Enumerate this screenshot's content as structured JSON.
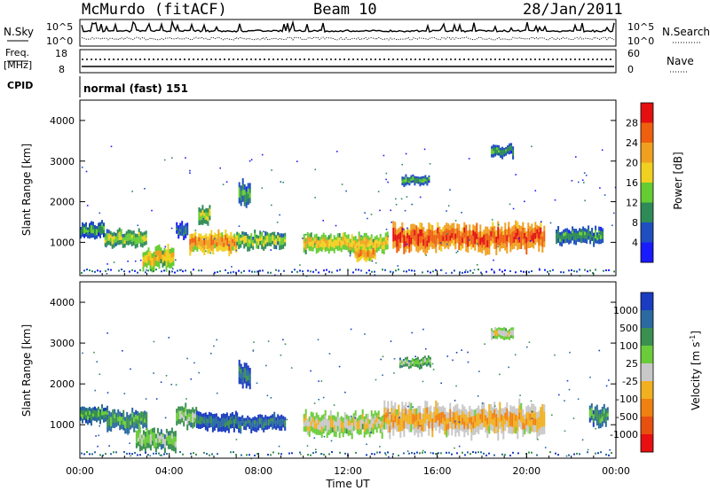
{
  "header": {
    "station": "McMurdo (fitACF)",
    "beam": "Beam 10",
    "date": "28/Jan/2011"
  },
  "summary_panels": {
    "nsky_label": "N.Sky",
    "nsky_ticks": [
      "10^5",
      "10^0"
    ],
    "nsearch_label": "N.Search",
    "nsearch_ticks": [
      "10^5",
      "10^0"
    ],
    "freq_label_1": "Freq.",
    "freq_label_2": "[MHz]",
    "freq_ticks": [
      "18",
      "8"
    ],
    "nave_label": "Nave",
    "nave_ticks": [
      "60",
      "0"
    ],
    "cpid_label": "CPID",
    "cpid_value": "normal (fast) 151"
  },
  "chart_data": [
    {
      "type": "heatmap",
      "name": "power",
      "ylabel": "Slant Range [km]",
      "ylim": [
        180,
        4500
      ],
      "yticks": [
        "1000",
        "2000",
        "3000",
        "4000"
      ],
      "colorbar_label": "Power [dB]",
      "colorbar_ticks": [
        "4",
        "8",
        "12",
        "16",
        "20",
        "24",
        "28"
      ],
      "colorbar_colors": [
        "#1a1aff",
        "#1f4fbf",
        "#2e8b57",
        "#66cc33",
        "#f0d020",
        "#f0a020",
        "#ee6010",
        "#e41010"
      ],
      "echo_regions": [
        {
          "t": [
            0.0,
            1.1
          ],
          "r": [
            1100,
            1500
          ],
          "level": 3
        },
        {
          "t": [
            1.1,
            3.0
          ],
          "r": [
            900,
            1300
          ],
          "level": 4
        },
        {
          "t": [
            2.8,
            4.2
          ],
          "r": [
            350,
            900
          ],
          "level": 5
        },
        {
          "t": [
            4.3,
            4.8
          ],
          "r": [
            1100,
            1500
          ],
          "level": 2
        },
        {
          "t": [
            4.9,
            7.0
          ],
          "r": [
            750,
            1250
          ],
          "level": 6
        },
        {
          "t": [
            5.3,
            5.8
          ],
          "r": [
            1450,
            1900
          ],
          "level": 4
        },
        {
          "t": [
            7.0,
            9.2
          ],
          "r": [
            850,
            1250
          ],
          "level": 4
        },
        {
          "t": [
            7.1,
            7.6
          ],
          "r": [
            1900,
            2500
          ],
          "level": 3
        },
        {
          "t": [
            10.0,
            13.8
          ],
          "r": [
            750,
            1200
          ],
          "level": 5
        },
        {
          "t": [
            12.3,
            13.2
          ],
          "r": [
            550,
            900
          ],
          "level": 6
        },
        {
          "t": [
            14.0,
            20.8
          ],
          "r": [
            800,
            1450
          ],
          "level": 7
        },
        {
          "t": [
            14.4,
            15.6
          ],
          "r": [
            2400,
            2650
          ],
          "level": 3
        },
        {
          "t": [
            18.4,
            19.4
          ],
          "r": [
            3100,
            3400
          ],
          "level": 3
        },
        {
          "t": [
            21.3,
            23.4
          ],
          "r": [
            950,
            1350
          ],
          "level": 3
        }
      ]
    },
    {
      "type": "heatmap",
      "name": "velocity",
      "xlabel": "Time UT",
      "xticks": [
        "00:00",
        "04:00",
        "08:00",
        "12:00",
        "16:00",
        "20:00",
        "00:00"
      ],
      "xlim": [
        0,
        24
      ],
      "ylabel": "Slant Range [km]",
      "ylim": [
        180,
        4500
      ],
      "yticks": [
        "1000",
        "2000",
        "3000",
        "4000"
      ],
      "colorbar_label": "Velocity [m s",
      "colorbar_sup": "-1",
      "colorbar_ticks": [
        "1000",
        "500",
        "100",
        "25",
        "-25",
        "-100",
        "-500",
        "-1000"
      ],
      "colorbar_colors": [
        "#1a3cc0",
        "#2a6aa0",
        "#3a9050",
        "#6acc3a",
        "#c8c8c8",
        "#f0b020",
        "#f08010",
        "#e85010",
        "#e81010"
      ],
      "echo_regions": [
        {
          "t": [
            0.0,
            1.2
          ],
          "r": [
            1050,
            1450
          ],
          "level": 3
        },
        {
          "t": [
            1.2,
            3.0
          ],
          "r": [
            850,
            1350
          ],
          "level": 3
        },
        {
          "t": [
            2.5,
            4.3
          ],
          "r": [
            350,
            900
          ],
          "level": 4
        },
        {
          "t": [
            4.3,
            5.2
          ],
          "r": [
            950,
            1450
          ],
          "level": 4
        },
        {
          "t": [
            5.2,
            7.0
          ],
          "r": [
            850,
            1300
          ],
          "level": 2
        },
        {
          "t": [
            7.0,
            9.2
          ],
          "r": [
            850,
            1250
          ],
          "level": 2
        },
        {
          "t": [
            7.1,
            7.6
          ],
          "r": [
            1900,
            2500
          ],
          "level": 2
        },
        {
          "t": [
            10.0,
            13.6
          ],
          "r": [
            750,
            1300
          ],
          "level": 5
        },
        {
          "t": [
            13.6,
            20.8
          ],
          "r": [
            750,
            1500
          ],
          "level": 6
        },
        {
          "t": [
            14.3,
            15.7
          ],
          "r": [
            2400,
            2650
          ],
          "level": 4
        },
        {
          "t": [
            18.4,
            19.4
          ],
          "r": [
            3100,
            3400
          ],
          "level": 5
        },
        {
          "t": [
            22.8,
            23.6
          ],
          "r": [
            1000,
            1500
          ],
          "level": 3
        }
      ]
    }
  ]
}
